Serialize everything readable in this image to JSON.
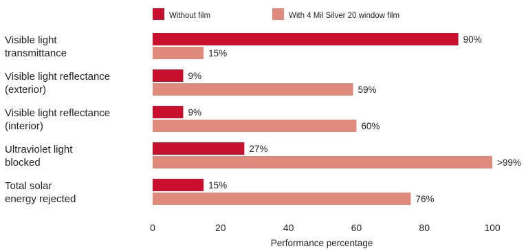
{
  "chart_data": {
    "type": "bar",
    "orientation": "horizontal",
    "categories": [
      [
        "Visible light",
        "transmittance"
      ],
      [
        "Visible light reflectance",
        "(exterior)"
      ],
      [
        "Visible light reflectance",
        "(interior)"
      ],
      [
        "Ultraviolet light",
        "blocked"
      ],
      [
        "Total solar",
        "energy rejected"
      ]
    ],
    "series": [
      {
        "name": "Without film",
        "color": "#c8102e",
        "values": [
          90,
          9,
          9,
          27,
          15
        ],
        "labels": [
          "90%",
          "9%",
          "9%",
          "27%",
          "15%"
        ]
      },
      {
        "name": "With 4 Mil Silver 20 window film",
        "color": "#e0897d",
        "values": [
          15,
          59,
          60,
          100,
          76
        ],
        "labels": [
          "15%",
          "59%",
          "60%",
          ">99%",
          "76%"
        ]
      }
    ],
    "xlabel": "Performance percentage",
    "ylabel": "",
    "xlim": [
      0,
      100
    ],
    "xticks": [
      0,
      20,
      40,
      60,
      80,
      100
    ],
    "grid": false,
    "legend_position": "top"
  }
}
